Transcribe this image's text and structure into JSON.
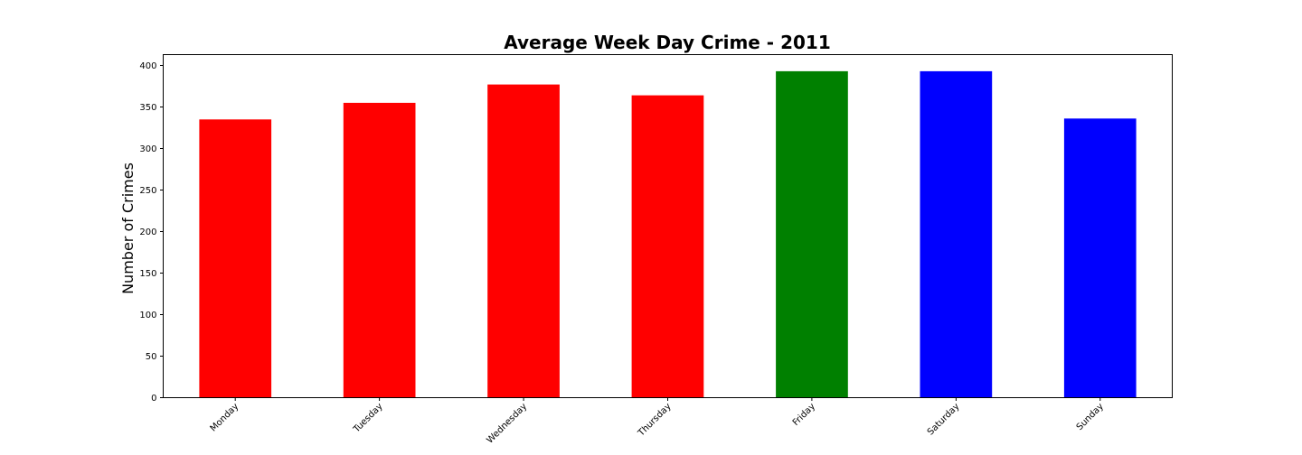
{
  "chart_data": {
    "type": "bar",
    "title": "Average Week Day Crime - 2011",
    "xlabel": "",
    "ylabel": "Number of Crimes",
    "categories": [
      "Monday",
      "Tuesday",
      "Wednesday",
      "Thursday",
      "Friday",
      "Saturday",
      "Sunday"
    ],
    "values": [
      335,
      355,
      377,
      364,
      393,
      393,
      336
    ],
    "bar_colors": [
      "#ff0000",
      "#ff0000",
      "#ff0000",
      "#ff0000",
      "#008000",
      "#0000ff",
      "#0000ff"
    ],
    "ylim": [
      0,
      413
    ],
    "yticks": [
      0,
      50,
      100,
      150,
      200,
      250,
      300,
      350,
      400
    ],
    "ytick_labels": [
      "0",
      "50",
      "100",
      "150",
      "200",
      "250",
      "300",
      "350",
      "400"
    ],
    "grid": false,
    "legend": "none"
  }
}
